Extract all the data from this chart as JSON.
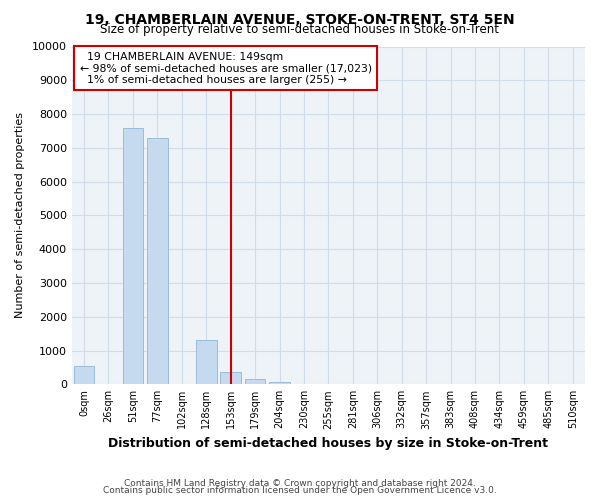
{
  "title": "19, CHAMBERLAIN AVENUE, STOKE-ON-TRENT, ST4 5EN",
  "subtitle": "Size of property relative to semi-detached houses in Stoke-on-Trent",
  "xlabel": "Distribution of semi-detached houses by size in Stoke-on-Trent",
  "ylabel": "Number of semi-detached properties",
  "footnote1": "Contains HM Land Registry data © Crown copyright and database right 2024.",
  "footnote2": "Contains public sector information licensed under the Open Government Licence v3.0.",
  "annotation_title": "19 CHAMBERLAIN AVENUE: 149sqm",
  "annotation_line1": "← 98% of semi-detached houses are smaller (17,023)",
  "annotation_line2": "1% of semi-detached houses are larger (255) →",
  "property_line_x": 6,
  "tick_labels": [
    "0sqm",
    "26sqm",
    "51sqm",
    "77sqm",
    "102sqm",
    "128sqm",
    "153sqm",
    "179sqm",
    "204sqm",
    "230sqm",
    "255sqm",
    "281sqm",
    "306sqm",
    "332sqm",
    "357sqm",
    "383sqm",
    "408sqm",
    "434sqm",
    "459sqm",
    "485sqm",
    "510sqm"
  ],
  "values": [
    550,
    0,
    7600,
    7300,
    0,
    1300,
    350,
    150,
    80,
    0,
    0,
    0,
    0,
    0,
    0,
    0,
    0,
    0,
    0,
    0,
    0
  ],
  "bar_color": "#c5d9ef",
  "bar_edge_color": "#9bbcd8",
  "line_color": "#cc0000",
  "annotation_box_color": "#cc0000",
  "ylim": [
    0,
    10000
  ],
  "yticks": [
    0,
    1000,
    2000,
    3000,
    4000,
    5000,
    6000,
    7000,
    8000,
    9000,
    10000
  ],
  "grid_color": "#d0dce8",
  "bg_color": "#eef3f8"
}
